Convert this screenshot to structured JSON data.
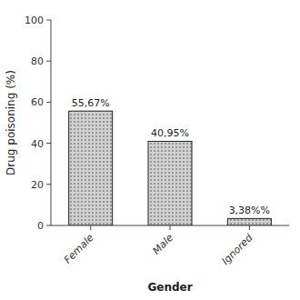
{
  "chart_data": {
    "type": "bar",
    "categories": [
      "Female",
      "Male",
      "Ignored"
    ],
    "values": [
      55.67,
      40.95,
      3.38
    ],
    "value_labels": [
      "55,67%",
      "40,95%",
      "3,38%%"
    ],
    "data_labels": true,
    "xlabel": "Gender",
    "ylabel": "Drug poisoning (%)",
    "ylim": [
      0,
      100
    ],
    "yticks": [
      0,
      20,
      40,
      60,
      80,
      100
    ],
    "color": "#d0d0d0",
    "grid": false
  }
}
